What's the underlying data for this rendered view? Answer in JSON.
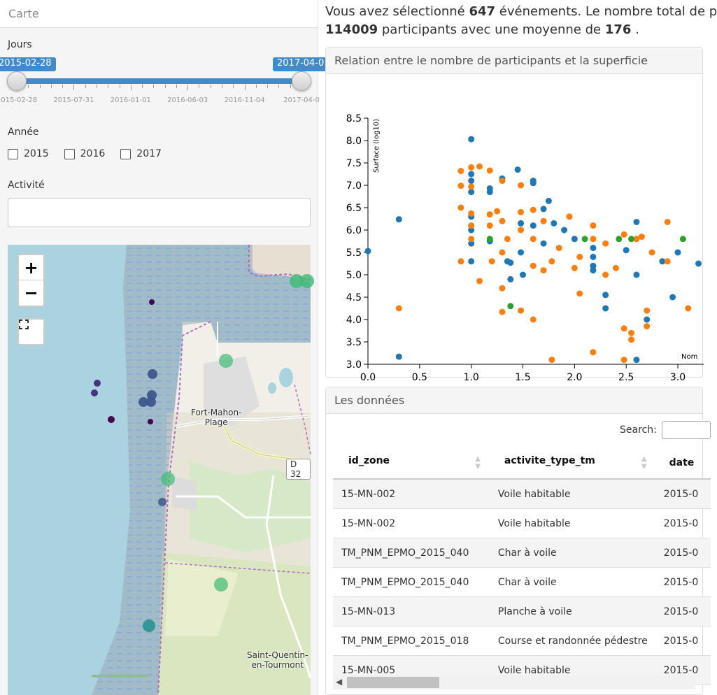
{
  "left": {
    "header": "Carte",
    "days_label": "Jours",
    "slider": {
      "from": "2015-02-28",
      "to": "2017-04-0",
      "from_fraction": 0.0,
      "to_fraction": 1.0,
      "tick_labels": [
        "2015-02-28",
        "2015-07-31",
        "2016-01-01",
        "2016-06-03",
        "2016-11-04",
        "2017-04-0"
      ]
    },
    "year_label": "Année",
    "years": [
      "2015",
      "2016",
      "2017"
    ],
    "activity_label": "Activité",
    "activity_value": "",
    "map": {
      "zoom_in": "+",
      "zoom_out": "−",
      "places": [
        "Fort-Mahon-\nPlage",
        "Saint-Quentin-\nen-Tourmont"
      ],
      "road": "D 32"
    }
  },
  "summary": {
    "p1": "Vous avez sélectionné ",
    "count": "647",
    "p2": " événements. Le nombre total de p",
    "total": "114009",
    "p3": " participants avec une moyenne de ",
    "avg": "176",
    "p4": " ."
  },
  "chart_card": {
    "title": "Relation entre le nombre de participants et la superficie"
  },
  "chart_data": {
    "type": "scatter",
    "ylabel": "Surface (log10)",
    "xlabel": "Nom",
    "xlim": [
      0,
      3.2
    ],
    "ylim": [
      3.0,
      8.5
    ],
    "xticks": [
      "0.0",
      "0.5",
      "1.0",
      "1.5",
      "2.0",
      "2.5",
      "3.0"
    ],
    "yticks": [
      "3.0",
      "3.5",
      "4.0",
      "4.5",
      "5.0",
      "5.5",
      "6.0",
      "6.5",
      "7.0",
      "7.5",
      "8.0",
      "8.5"
    ],
    "series": [
      {
        "color": "#1f77b4",
        "points": [
          [
            0,
            5.53
          ],
          [
            0.3,
            6.24
          ],
          [
            0.3,
            3.17
          ],
          [
            1.0,
            8.03
          ],
          [
            1.0,
            7.25
          ],
          [
            1.0,
            7.1
          ],
          [
            1.0,
            6.85
          ],
          [
            1.0,
            6.3
          ],
          [
            1.0,
            6.0
          ],
          [
            1.0,
            5.7
          ],
          [
            1.0,
            5.3
          ],
          [
            1.18,
            6.93
          ],
          [
            1.18,
            6.85
          ],
          [
            1.18,
            5.75
          ],
          [
            1.3,
            7.15
          ],
          [
            1.35,
            5.3
          ],
          [
            1.38,
            5.27
          ],
          [
            1.38,
            4.9
          ],
          [
            1.45,
            7.35
          ],
          [
            1.48,
            6.15
          ],
          [
            1.48,
            5.5
          ],
          [
            1.5,
            5.0
          ],
          [
            1.6,
            7.1
          ],
          [
            1.6,
            7.05
          ],
          [
            1.6,
            6.1
          ],
          [
            1.7,
            6.47
          ],
          [
            1.7,
            5.7
          ],
          [
            1.75,
            6.65
          ],
          [
            1.8,
            6.15
          ],
          [
            1.9,
            6.0
          ],
          [
            2.0,
            5.8
          ],
          [
            2.18,
            5.6
          ],
          [
            2.18,
            5.4
          ],
          [
            2.18,
            5.2
          ],
          [
            2.18,
            5.1
          ],
          [
            2.3,
            4.55
          ],
          [
            2.3,
            4.25
          ],
          [
            2.5,
            5.55
          ],
          [
            2.6,
            6.18
          ],
          [
            2.6,
            5.0
          ],
          [
            2.6,
            3.1
          ],
          [
            2.7,
            4.0
          ],
          [
            2.85,
            5.3
          ],
          [
            2.95,
            4.5
          ],
          [
            3.0,
            5.5
          ],
          [
            3.2,
            5.25
          ]
        ]
      },
      {
        "color": "#ff7f0e",
        "points": [
          [
            0.3,
            4.25
          ],
          [
            0.9,
            7.32
          ],
          [
            0.9,
            6.99
          ],
          [
            0.9,
            6.5
          ],
          [
            0.9,
            5.3
          ],
          [
            1.0,
            7.4
          ],
          [
            1.0,
            6.97
          ],
          [
            1.0,
            6.37
          ],
          [
            1.0,
            6.1
          ],
          [
            1.0,
            5.8
          ],
          [
            1.08,
            7.42
          ],
          [
            1.08,
            4.86
          ],
          [
            1.18,
            7.33
          ],
          [
            1.18,
            6.35
          ],
          [
            1.18,
            6.1
          ],
          [
            1.2,
            5.3
          ],
          [
            1.25,
            6.42
          ],
          [
            1.3,
            7.1
          ],
          [
            1.3,
            6.2
          ],
          [
            1.3,
            5.5
          ],
          [
            1.3,
            4.7
          ],
          [
            1.3,
            4.17
          ],
          [
            1.35,
            5.8
          ],
          [
            1.48,
            7.0
          ],
          [
            1.48,
            6.4
          ],
          [
            1.48,
            6.0
          ],
          [
            1.48,
            4.2
          ],
          [
            1.6,
            6.45
          ],
          [
            1.6,
            5.8
          ],
          [
            1.6,
            5.2
          ],
          [
            1.6,
            4.0
          ],
          [
            1.7,
            6.2
          ],
          [
            1.7,
            5.1
          ],
          [
            1.78,
            3.1
          ],
          [
            1.78,
            5.3
          ],
          [
            1.85,
            5.6
          ],
          [
            1.95,
            6.3
          ],
          [
            2.0,
            5.15
          ],
          [
            2.05,
            5.4
          ],
          [
            2.05,
            4.58
          ],
          [
            2.18,
            6.1
          ],
          [
            2.18,
            5.8
          ],
          [
            2.18,
            3.27
          ],
          [
            2.3,
            5.7
          ],
          [
            2.3,
            5.0
          ],
          [
            2.4,
            5.15
          ],
          [
            2.48,
            5.9
          ],
          [
            2.48,
            3.8
          ],
          [
            2.48,
            3.1
          ],
          [
            2.55,
            3.7
          ],
          [
            2.55,
            3.55
          ],
          [
            2.6,
            5.8
          ],
          [
            2.65,
            5.85
          ],
          [
            2.7,
            4.2
          ],
          [
            2.7,
            3.85
          ],
          [
            2.75,
            5.5
          ],
          [
            2.9,
            6.18
          ],
          [
            2.9,
            5.3
          ],
          [
            3.1,
            4.25
          ]
        ]
      },
      {
        "color": "#2ca02c",
        "points": [
          [
            1.18,
            5.8
          ],
          [
            1.38,
            4.3
          ],
          [
            2.1,
            5.8
          ],
          [
            2.43,
            5.8
          ],
          [
            2.55,
            5.8
          ],
          [
            3.05,
            5.8
          ]
        ]
      }
    ]
  },
  "data_card": {
    "title": "Les données",
    "search_label": "Search:",
    "columns": [
      "id_zone",
      "activite_type_tm",
      "date"
    ],
    "rows": [
      [
        "15-MN-002",
        "Voile habitable",
        "2015-0"
      ],
      [
        "15-MN-002",
        "Voile habitable",
        "2015-0"
      ],
      [
        "TM_PNM_EPMO_2015_040",
        "Char à voile",
        "2015-0"
      ],
      [
        "TM_PNM_EPMO_2015_040",
        "Char à voile",
        "2015-0"
      ],
      [
        "15-MN-013",
        "Planche à voile",
        "2015-0"
      ],
      [
        "TM_PNM_EPMO_2015_018",
        "Course et randonnée pédestre",
        "2015-0"
      ],
      [
        "15-MN-005",
        "Voile habitable",
        "2015-0"
      ]
    ]
  }
}
